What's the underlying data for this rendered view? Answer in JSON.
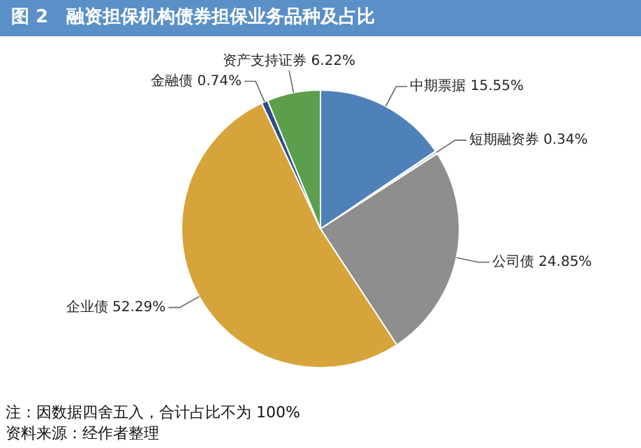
{
  "chart_data": {
    "type": "pie",
    "title": "图 2　融资担保机构债券担保业务品种及占比",
    "categories": [
      "中期票据",
      "短期融资券",
      "公司债",
      "企业债",
      "金融债",
      "资产支持证券"
    ],
    "values": [
      15.55,
      0.34,
      24.85,
      52.29,
      0.74,
      6.22
    ],
    "value_labels": [
      "15.55%",
      "0.34%",
      "24.85%",
      "52.29%",
      "0.74%",
      "6.22%"
    ],
    "colors": [
      "#4f81b9",
      "#c9d6e3",
      "#8e8e8e",
      "#d6a43a",
      "#2d4e84",
      "#5c9e4c"
    ],
    "legend": false,
    "annotations": [
      "注：因数据四舍五入，合计占比不为 100%",
      "资料来源：经作者整理"
    ]
  }
}
